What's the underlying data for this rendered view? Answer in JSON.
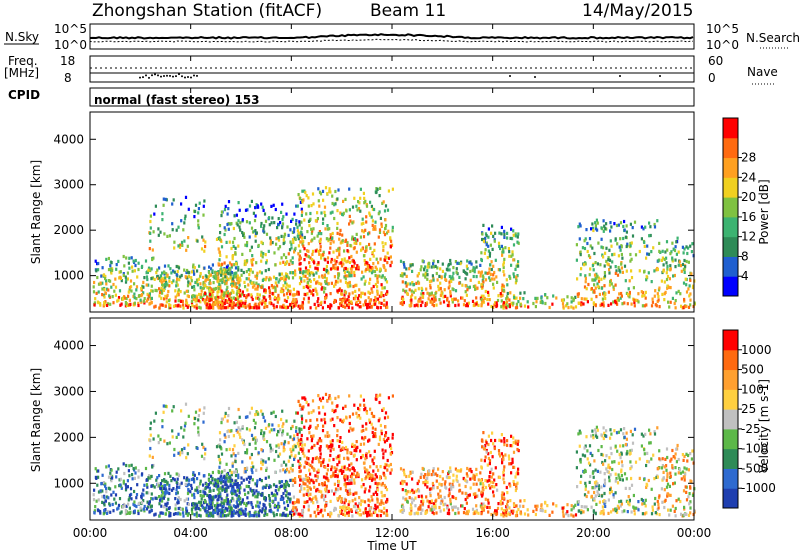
{
  "title": {
    "station": "Zhongshan Station (fitACF)",
    "beam": "Beam 11",
    "date": "14/May/2015"
  },
  "panels": {
    "nsky": {
      "label": "N.Sky",
      "yticks": [
        "10^5",
        "10^0"
      ],
      "right_label": "N.Search",
      "right_ticks": [
        "10^5",
        "10^0"
      ]
    },
    "freq": {
      "label1": "Freq.",
      "label2": "[MHz]",
      "yticks": [
        "18",
        "8"
      ],
      "right_label": "Nave",
      "right_ticks": [
        "60",
        "0"
      ]
    },
    "cpid": {
      "label": "CPID",
      "mode": "normal (fast stereo) 153"
    }
  },
  "chart_data": [
    {
      "type": "heatmap",
      "name": "power",
      "ylabel": "Slant Range [km]",
      "yticks": [
        "1000",
        "2000",
        "3000",
        "4000"
      ],
      "ylim": [
        200,
        4600
      ],
      "colorbar": {
        "label": "Power [dB]",
        "ticks": [
          "4",
          "8",
          "12",
          "16",
          "20",
          "24",
          "28"
        ],
        "colors": [
          "#0000ff",
          "#1f5fd0",
          "#2e8b57",
          "#3cb371",
          "#7fc241",
          "#f0d020",
          "#ffa020",
          "#ff6a10",
          "#ff0000"
        ]
      }
    },
    {
      "type": "heatmap",
      "name": "velocity",
      "ylabel": "Slant Range [km]",
      "yticks": [
        "1000",
        "2000",
        "3000",
        "4000"
      ],
      "ylim": [
        200,
        4600
      ],
      "colorbar": {
        "label": "Velocity [m s-1]",
        "ticks": [
          "1000",
          "500",
          "100",
          "25",
          "-25",
          "-100",
          "-500",
          "-1000"
        ],
        "colors": [
          "#1f3fb0",
          "#2e6ad0",
          "#2e8b57",
          "#5cb848",
          "#c0c0c0",
          "#ffd040",
          "#ffa030",
          "#ff6a10",
          "#ff0000"
        ]
      }
    }
  ],
  "xaxis": {
    "label": "Time UT",
    "ticks": [
      "00:00",
      "04:00",
      "08:00",
      "12:00",
      "16:00",
      "20:00",
      "00:00"
    ]
  }
}
